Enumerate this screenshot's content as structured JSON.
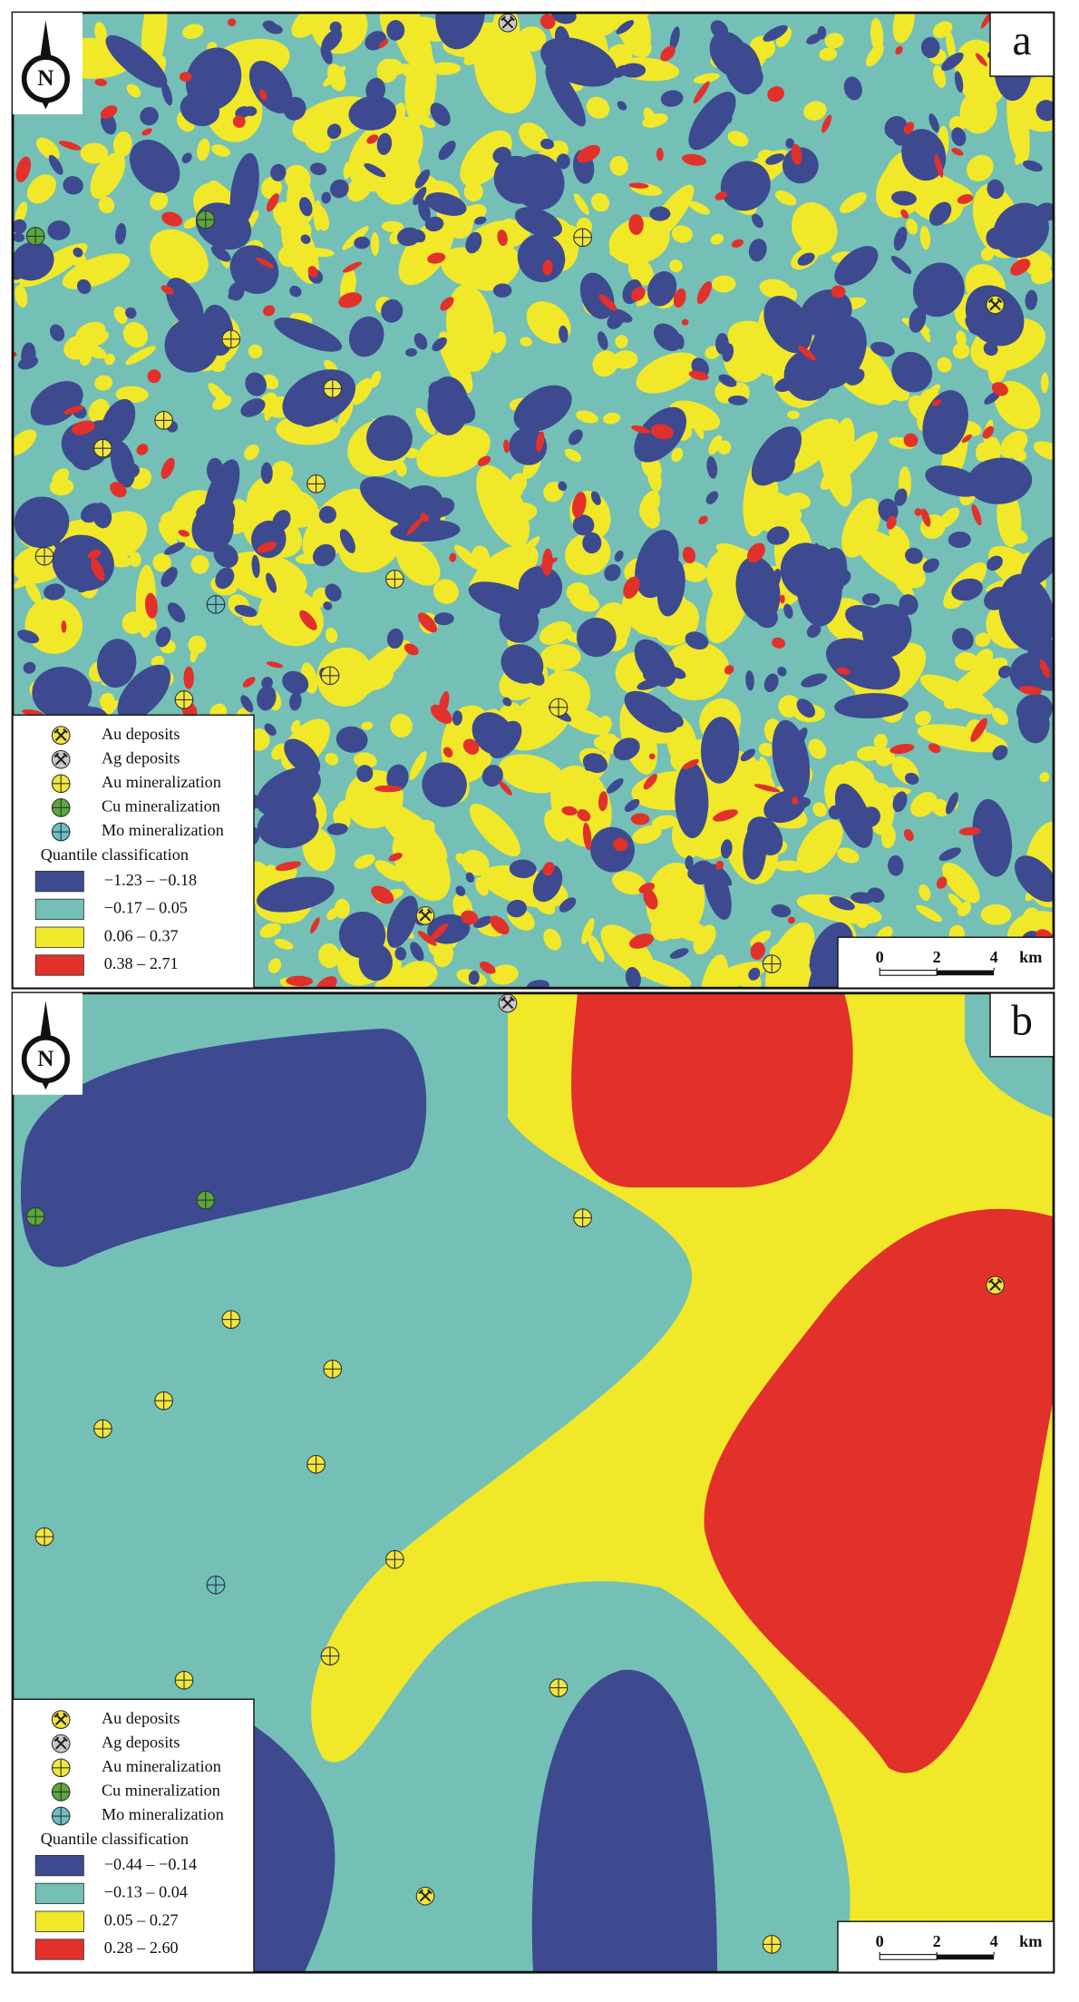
{
  "north_arrow": "N",
  "panels": [
    {
      "label": "a",
      "legend": {
        "symbols": [
          {
            "name": "Au deposits",
            "color": "#f3e63a"
          },
          {
            "name": "Ag deposits",
            "color": "#c9c9c9"
          },
          {
            "name": "Au mineralization",
            "color": "#f3e63a"
          },
          {
            "name": "Cu mineralization",
            "color": "#5aa83c"
          },
          {
            "name": "Mo mineralization",
            "color": "#6cc0c4"
          }
        ],
        "title": "Quantile classification",
        "classes": [
          {
            "label": "−1.23 – −0.18",
            "color": "#3d4a8f"
          },
          {
            "label": "−0.17 – 0.05",
            "color": "#74c0b7"
          },
          {
            "label": "0.06 – 0.37",
            "color": "#f2e82a"
          },
          {
            "label": "0.38 – 2.71",
            "color": "#e2302b"
          }
        ]
      },
      "scale_bar": {
        "ticks": [
          0,
          2,
          4
        ],
        "unit": "km"
      }
    },
    {
      "label": "b",
      "legend": {
        "symbols": [
          {
            "name": "Au deposits",
            "color": "#f3e63a"
          },
          {
            "name": "Ag deposits",
            "color": "#c9c9c9"
          },
          {
            "name": "Au mineralization",
            "color": "#f3e63a"
          },
          {
            "name": "Cu mineralization",
            "color": "#5aa83c"
          },
          {
            "name": "Mo mineralization",
            "color": "#6cc0c4"
          }
        ],
        "title": "Quantile classification",
        "classes": [
          {
            "label": "−0.44 – −0.14",
            "color": "#3d4a8f"
          },
          {
            "label": "−0.13 – 0.04",
            "color": "#74c0b7"
          },
          {
            "label": "0.05 – 0.27",
            "color": "#f2e82a"
          },
          {
            "label": "0.28 – 2.60",
            "color": "#e2302b"
          }
        ]
      },
      "scale_bar": {
        "ticks": [
          0,
          2,
          4
        ],
        "unit": "km"
      }
    }
  ]
}
